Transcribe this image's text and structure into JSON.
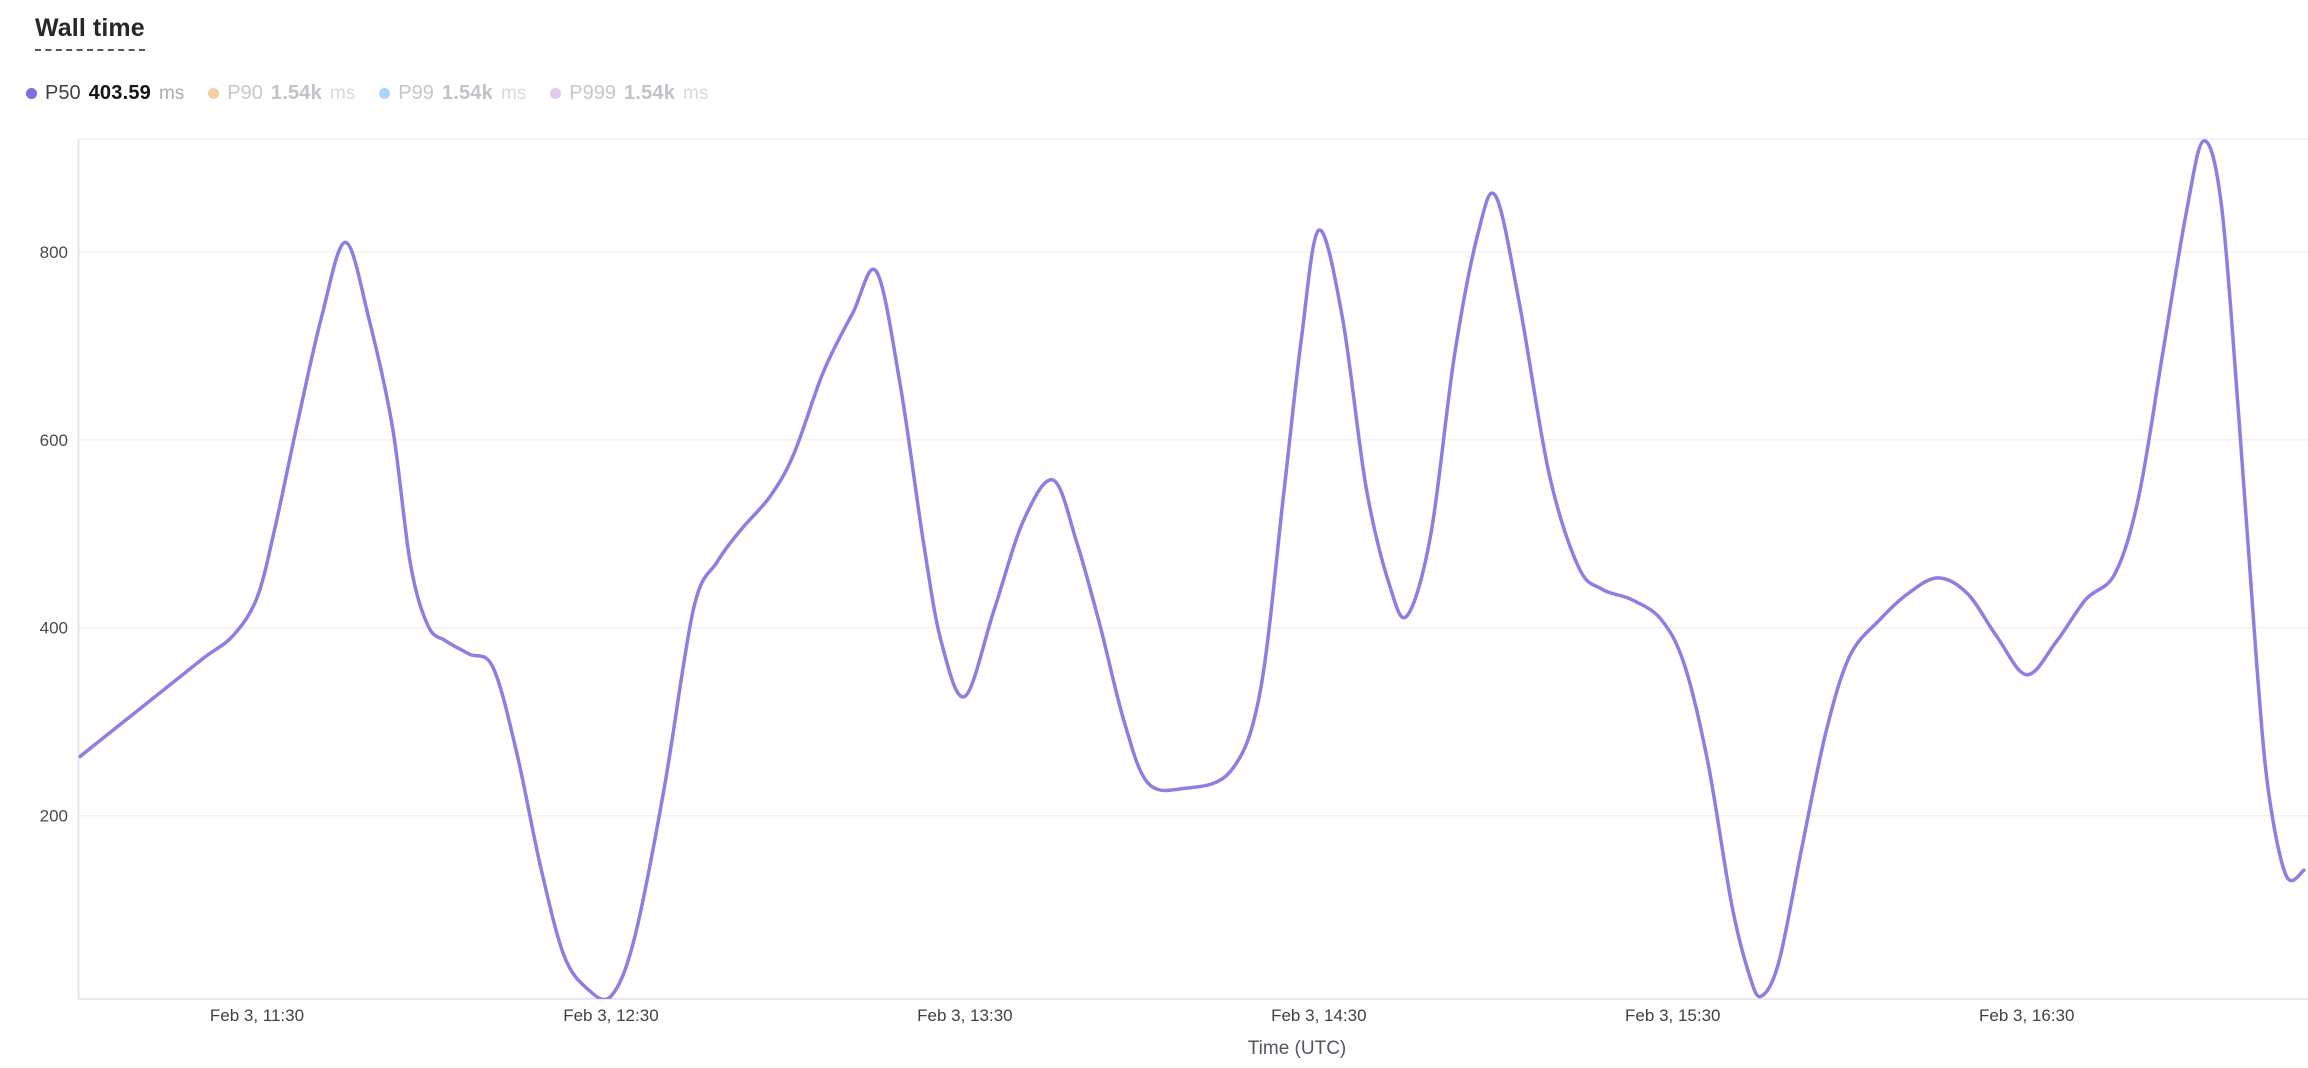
{
  "page": {
    "title": "Wall time"
  },
  "legend": {
    "items": [
      {
        "id": "p50",
        "label": "P50",
        "value": "403.59",
        "unit": "ms",
        "color": "#7b6ee0",
        "active": true
      },
      {
        "id": "p90",
        "label": "P90",
        "value": "1.54k",
        "unit": "ms",
        "color": "#f4cfa4",
        "active": false
      },
      {
        "id": "p99",
        "label": "P99",
        "value": "1.54k",
        "unit": "ms",
        "color": "#aed3f4",
        "active": false
      },
      {
        "id": "p999",
        "label": "P999",
        "value": "1.54k",
        "unit": "ms",
        "color": "#e3c8f1",
        "active": false
      }
    ]
  },
  "chart_data": {
    "type": "line",
    "title": "Wall time",
    "xlabel": "Time (UTC)",
    "ylabel": "",
    "y_unit": "ms",
    "x_unit": "minutes after Feb 3, 11:00 UTC",
    "ylim": [
      5,
      920
    ],
    "xlim": [
      0,
      377
    ],
    "grid": "horizontal",
    "legend_position": "top-left",
    "y_ticks": [
      200,
      400,
      600,
      800
    ],
    "x_ticks": [
      {
        "t": 30,
        "label": "Feb 3, 11:30"
      },
      {
        "t": 90,
        "label": "Feb 3, 12:30"
      },
      {
        "t": 150,
        "label": "Feb 3, 13:30"
      },
      {
        "t": 210,
        "label": "Feb 3, 14:30"
      },
      {
        "t": 270,
        "label": "Feb 3, 15:30"
      },
      {
        "t": 330,
        "label": "Feb 3, 16:30"
      }
    ],
    "series": [
      {
        "name": "P50",
        "unit": "ms",
        "color": "#8a80e4",
        "stroke_width": 3.5,
        "points": [
          [
            0,
            263
          ],
          [
            8,
            303
          ],
          [
            15,
            338
          ],
          [
            21,
            368
          ],
          [
            26,
            392
          ],
          [
            30,
            432
          ],
          [
            33,
            505
          ],
          [
            37,
            622
          ],
          [
            41,
            732
          ],
          [
            45,
            810
          ],
          [
            49,
            728
          ],
          [
            53,
            612
          ],
          [
            56,
            468
          ],
          [
            59,
            402
          ],
          [
            62,
            386
          ],
          [
            66,
            372
          ],
          [
            70,
            358
          ],
          [
            74,
            268
          ],
          [
            78,
            148
          ],
          [
            82,
            52
          ],
          [
            86,
            16
          ],
          [
            90,
            8
          ],
          [
            94,
            70
          ],
          [
            99,
            228
          ],
          [
            104,
            420
          ],
          [
            108,
            470
          ],
          [
            112,
            504
          ],
          [
            117,
            540
          ],
          [
            121,
            585
          ],
          [
            126,
            672
          ],
          [
            131,
            735
          ],
          [
            135,
            779
          ],
          [
            139,
            660
          ],
          [
            143,
            490
          ],
          [
            146,
            385
          ],
          [
            150,
            327
          ],
          [
            155,
            420
          ],
          [
            160,
            515
          ],
          [
            165,
            557
          ],
          [
            169,
            490
          ],
          [
            173,
            400
          ],
          [
            177,
            300
          ],
          [
            181,
            235
          ],
          [
            187,
            229
          ],
          [
            195,
            247
          ],
          [
            200,
            330
          ],
          [
            204,
            540
          ],
          [
            207,
            705
          ],
          [
            210,
            823
          ],
          [
            214,
            730
          ],
          [
            218,
            550
          ],
          [
            222,
            445
          ],
          [
            225,
            413
          ],
          [
            229,
            500
          ],
          [
            233,
            690
          ],
          [
            237,
            820
          ],
          [
            240,
            859
          ],
          [
            244,
            745
          ],
          [
            249,
            565
          ],
          [
            254,
            465
          ],
          [
            258,
            441
          ],
          [
            263,
            430
          ],
          [
            268,
            409
          ],
          [
            272,
            360
          ],
          [
            276,
            255
          ],
          [
            280,
            105
          ],
          [
            283,
            30
          ],
          [
            285,
            8
          ],
          [
            288,
            45
          ],
          [
            292,
            170
          ],
          [
            296,
            290
          ],
          [
            300,
            370
          ],
          [
            305,
            408
          ],
          [
            310,
            437
          ],
          [
            315,
            453
          ],
          [
            320,
            436
          ],
          [
            325,
            390
          ],
          [
            330,
            350
          ],
          [
            335,
            385
          ],
          [
            340,
            430
          ],
          [
            345,
            458
          ],
          [
            349,
            540
          ],
          [
            353,
            690
          ],
          [
            357,
            840
          ],
          [
            360,
            918
          ],
          [
            363,
            850
          ],
          [
            366,
            620
          ],
          [
            369,
            360
          ],
          [
            371,
            225
          ],
          [
            374,
            136
          ],
          [
            377,
            142
          ]
        ]
      }
    ]
  },
  "colors": {
    "background": "#ffffff",
    "gridline": "#f1f1f4",
    "axis_border": "#e2e2e6",
    "top_border": "#ededf0",
    "line": "#8a80e4"
  }
}
